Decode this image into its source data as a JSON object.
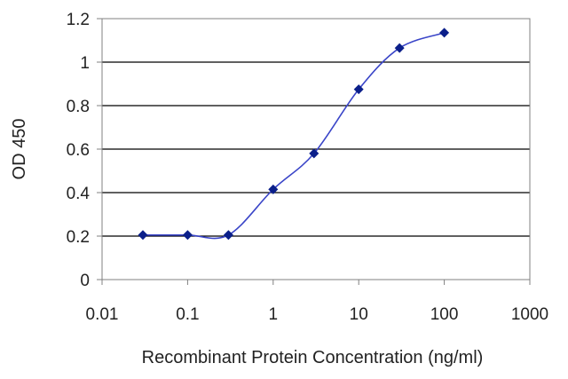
{
  "chart_data": {
    "type": "line",
    "title": "",
    "xlabel": "Recombinant Protein Concentration (ng/ml)",
    "ylabel": "OD 450",
    "x_scale": "log",
    "xlim": [
      0.01,
      1000
    ],
    "ylim": [
      0,
      1.2
    ],
    "x_ticks": [
      "0.01",
      "0.1",
      "1",
      "10",
      "100",
      "1000"
    ],
    "y_ticks": [
      "0",
      "0.2",
      "0.4",
      "0.6",
      "0.8",
      "1",
      "1.2"
    ],
    "grid": "horizontal",
    "series": [
      {
        "x": [
          0.03,
          0.1,
          0.3,
          1,
          3,
          10,
          30,
          100
        ],
        "y": [
          0.205,
          0.205,
          0.205,
          0.415,
          0.58,
          0.875,
          1.065,
          1.135
        ]
      }
    ],
    "colors": {
      "line": "#3a45c8",
      "marker": "#0b1f8a",
      "grid": "#000000",
      "plot_border": "#808080"
    }
  }
}
